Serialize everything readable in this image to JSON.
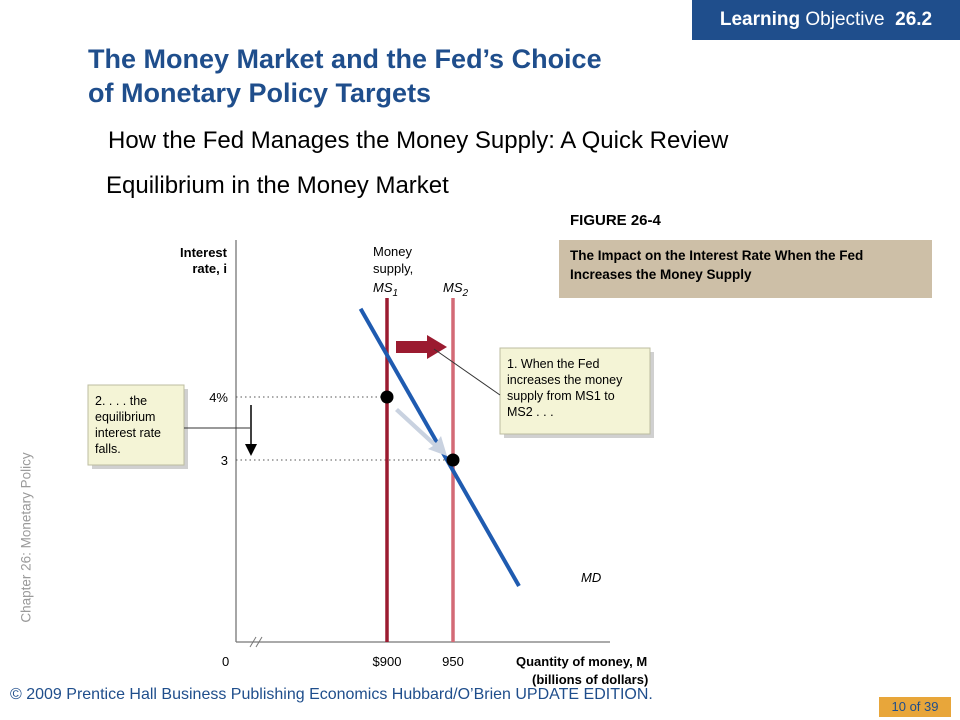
{
  "badge": {
    "bold": "Learning",
    "rest": " Objective",
    "number": "26.2"
  },
  "title_line1": "The Money Market and the Fed’s Choice",
  "title_line2": "of Monetary Policy Targets",
  "bullets": [
    "How the Fed Manages the Money Supply:  A Quick Review",
    "Equilibrium  in the Money Market"
  ],
  "figure": {
    "label": "FIGURE 26-4",
    "caption": "The Impact on the Interest Rate When the Fed Increases the Money Supply"
  },
  "side_label": "Chapter 26:  Monetary Policy",
  "footer": {
    "copyright": "© 2009 Prentice Hall Business Publishing Economics  Hubbard/O’Brien UPDATE EDITION.",
    "page": "10 of 39"
  },
  "colors": {
    "brand_blue": "#1f4e8c",
    "md_curve": "#1f5bb0",
    "ms1": "#9b1b30",
    "ms2": "#d36a76",
    "callout_bg": "#f4f4d6",
    "caption_bg": "#cdbfa7",
    "page_badge": "#e8a63a"
  },
  "chart_data": {
    "type": "line",
    "ylabel": [
      "Interest",
      "rate, i"
    ],
    "xlabel": [
      "Quantity of money, M",
      "(billions of dollars)"
    ],
    "origin_label": "0",
    "x_ticks": [
      {
        "value": 900,
        "label": "$900"
      },
      {
        "value": 950,
        "label": "950"
      }
    ],
    "y_ticks": [
      {
        "value": 4,
        "label": "4%"
      },
      {
        "value": 3,
        "label": "3"
      }
    ],
    "series": [
      {
        "name": "MD",
        "kind": "demand",
        "points": [
          [
            880,
            5.4
          ],
          [
            900,
            4
          ],
          [
            950,
            3
          ],
          [
            1000,
            1.0
          ]
        ]
      },
      {
        "name": "MS1",
        "kind": "vertical",
        "x": 900
      },
      {
        "name": "MS2",
        "kind": "vertical",
        "x": 950
      }
    ],
    "equilibria": [
      {
        "x": 900,
        "y": 4
      },
      {
        "x": 950,
        "y": 3
      }
    ],
    "line_labels": {
      "md": "MD",
      "ms1_pre": [
        "Money",
        "supply,"
      ],
      "ms1": "MS",
      "ms1_sub": "1",
      "ms2": "MS",
      "ms2_sub": "2"
    },
    "annotations": [
      {
        "id": "callout1",
        "lines": [
          "1. When the Fed",
          "increases the money",
          "supply from MS1 to",
          "MS2 . . ."
        ]
      },
      {
        "id": "callout2",
        "lines": [
          "2. . . . the",
          "equilibrium",
          "interest rate",
          "falls."
        ]
      }
    ]
  }
}
